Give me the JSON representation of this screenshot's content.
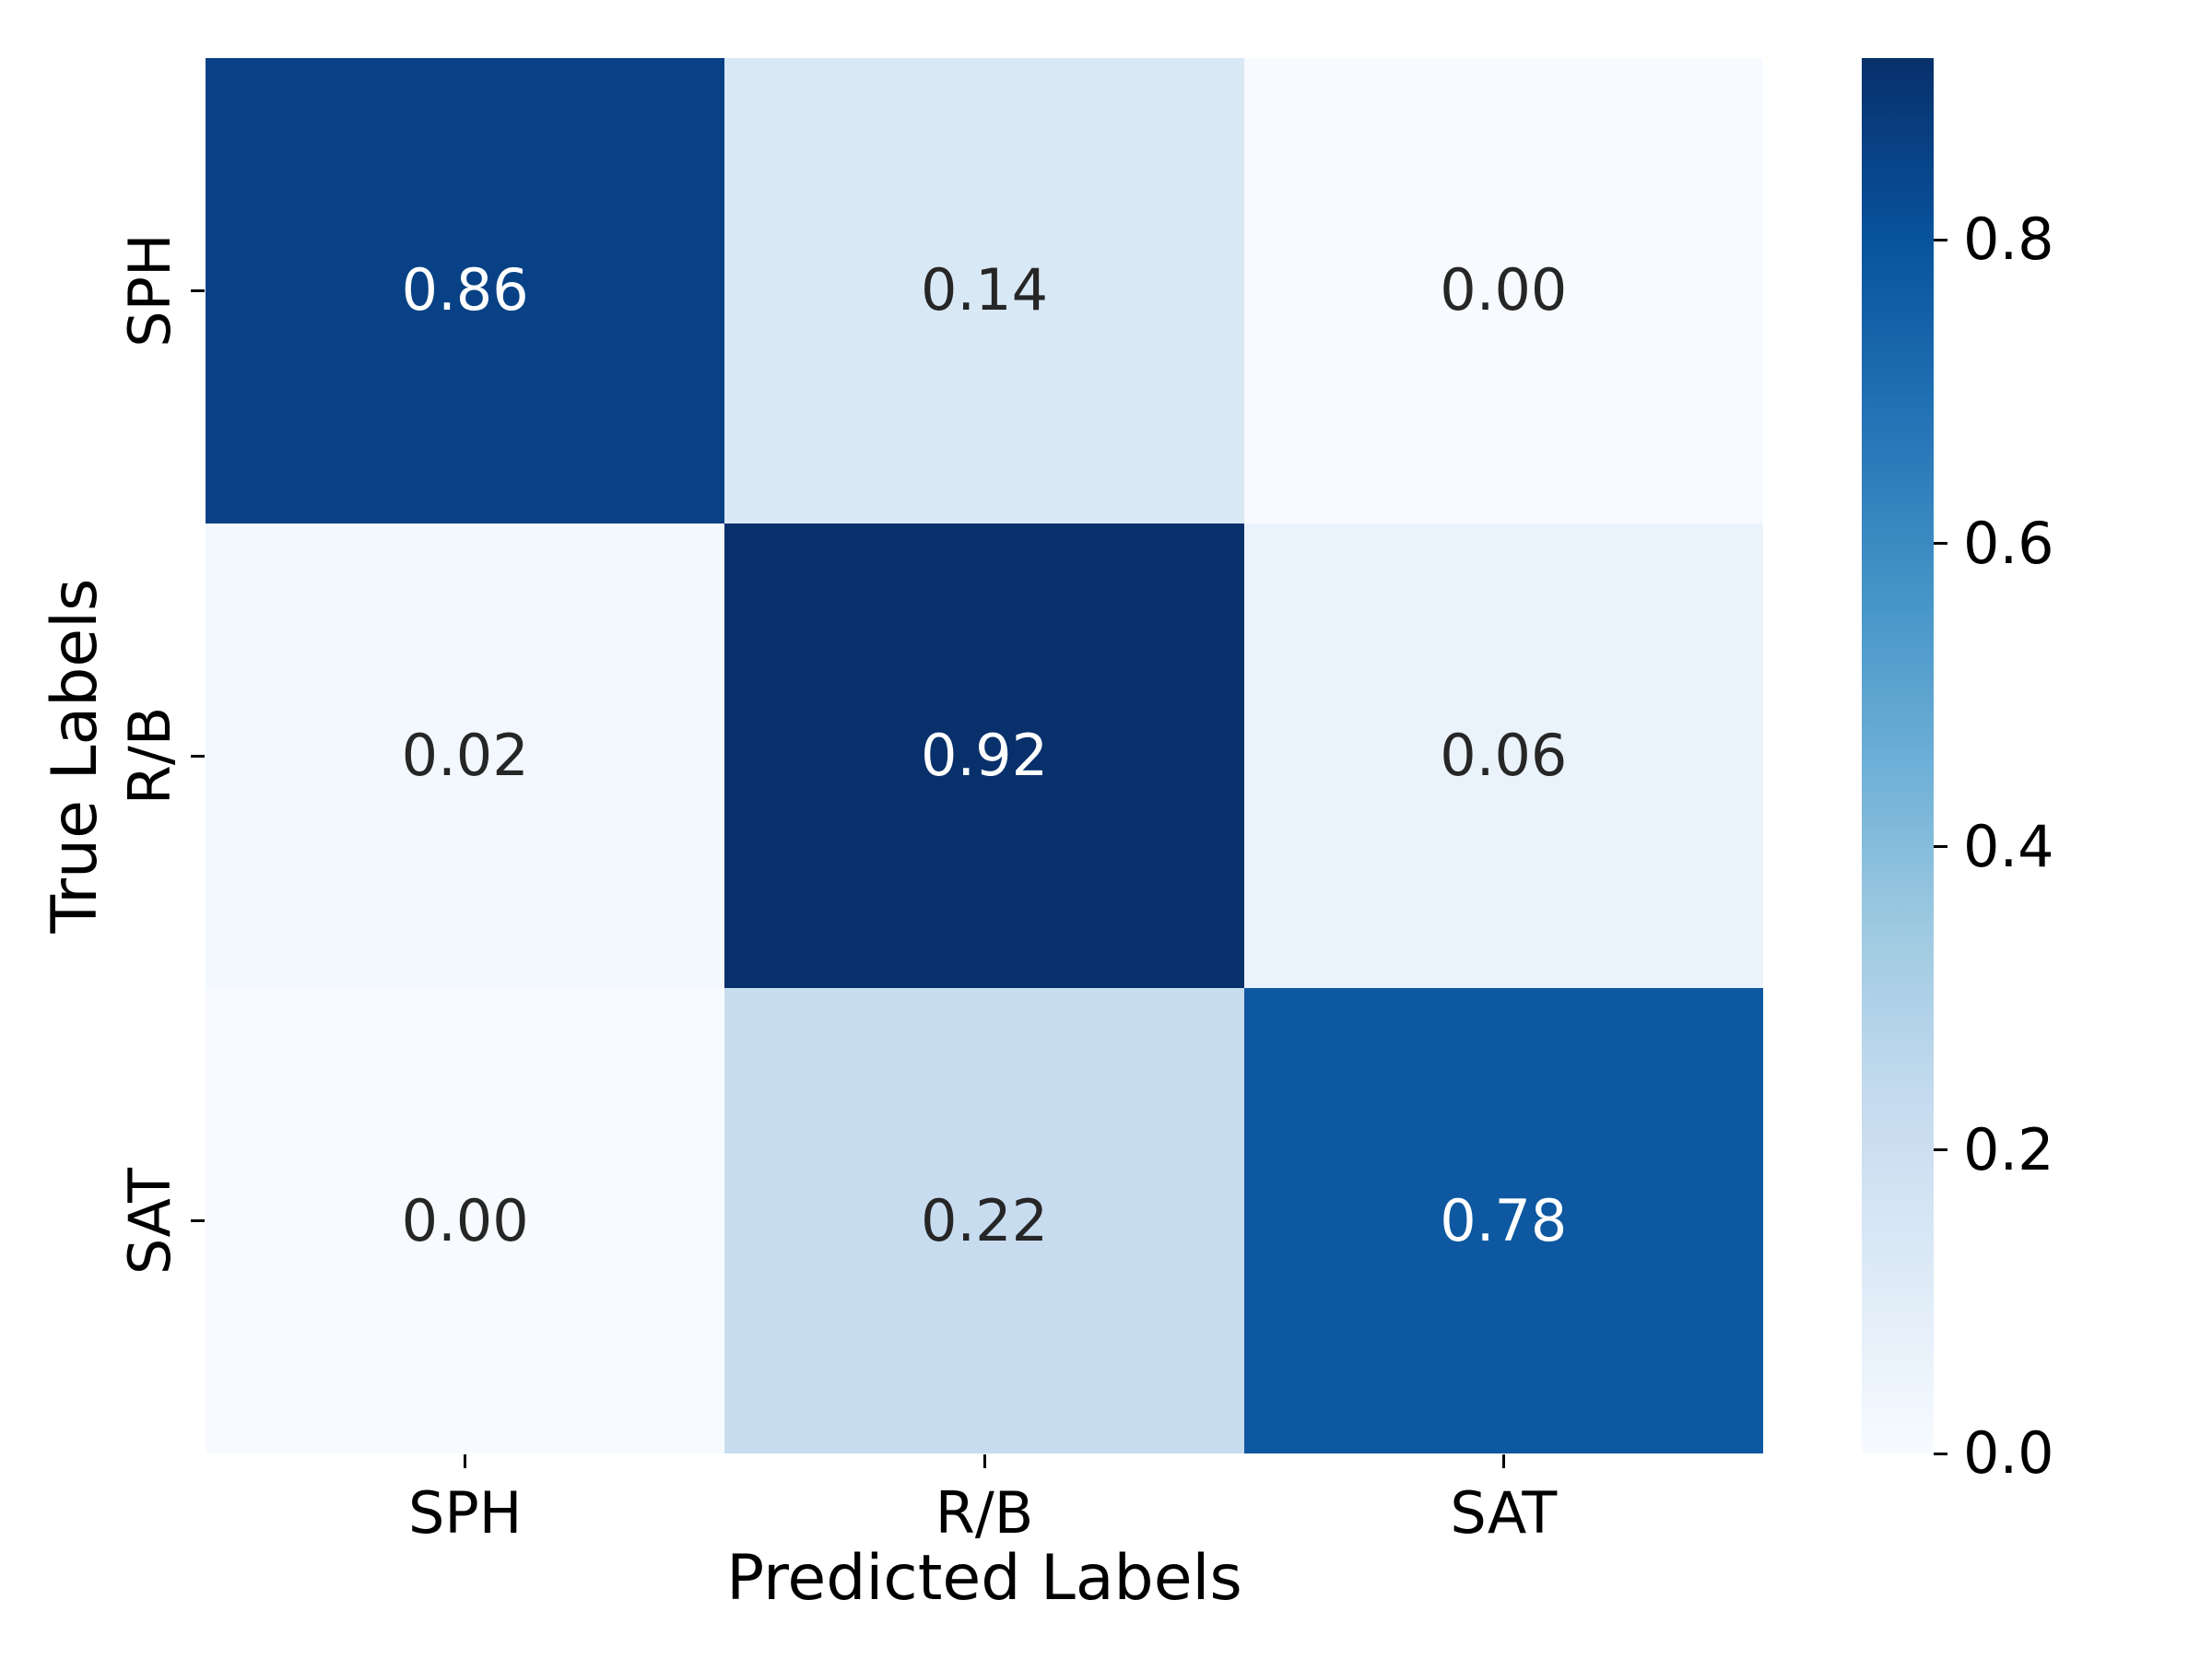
{
  "chart_data": {
    "type": "heatmap",
    "title": "",
    "xlabel": "Predicted Labels",
    "ylabel": "True Labels",
    "x_categories": [
      "SPH",
      "R/B",
      "SAT"
    ],
    "y_categories": [
      "SPH",
      "R/B",
      "SAT"
    ],
    "matrix": [
      [
        0.86,
        0.14,
        0.0
      ],
      [
        0.02,
        0.92,
        0.06
      ],
      [
        0.0,
        0.22,
        0.78
      ]
    ],
    "cell_labels": [
      [
        "0.86",
        "0.14",
        "0.00"
      ],
      [
        "0.02",
        "0.92",
        "0.06"
      ],
      [
        "0.00",
        "0.22",
        "0.78"
      ]
    ],
    "cell_colors": [
      [
        "#084185",
        "#d9e8f5",
        "#f7fbff"
      ],
      [
        "#f3f8fe",
        "#08306b",
        "#eaf3fb"
      ],
      [
        "#f7fbff",
        "#c8dcf0",
        "#0d58a1"
      ]
    ],
    "cell_text_colors": [
      [
        "#ffffff",
        "#262626",
        "#262626"
      ],
      [
        "#262626",
        "#ffffff",
        "#262626"
      ],
      [
        "#262626",
        "#262626",
        "#ffffff"
      ]
    ],
    "colormap": "Blues",
    "vmin": 0.0,
    "vmax": 0.92,
    "grid": false,
    "legend_position": "right-colorbar",
    "colorbar": {
      "tick_labels": [
        "0.0",
        "0.2",
        "0.4",
        "0.6",
        "0.8"
      ],
      "tick_values": [
        0.0,
        0.2,
        0.4,
        0.6,
        0.8
      ],
      "gradient_bottom_to_top": [
        "#f7fbff",
        "#deebf7",
        "#c6dbef",
        "#9ecae1",
        "#6baed6",
        "#4292c6",
        "#2171b5",
        "#08519c",
        "#08306b"
      ]
    }
  },
  "colors": {
    "background": "#ffffff",
    "tick_color": "#000000",
    "label_color": "#000000",
    "annot_dark": "#262626",
    "annot_light": "#ffffff"
  }
}
